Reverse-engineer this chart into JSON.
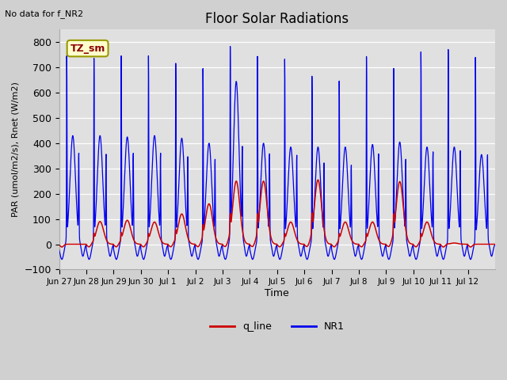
{
  "title": "Floor Solar Radiations",
  "xlabel": "Time",
  "ylabel": "PAR (umol/m2/s), Rnet (W/m2)",
  "ylim": [
    -100,
    850
  ],
  "yticks": [
    -100,
    0,
    100,
    200,
    300,
    400,
    500,
    600,
    700,
    800
  ],
  "no_data_text": "No data for f_NR2",
  "legend_labels": [
    "q_line",
    "NR1"
  ],
  "legend_colors": [
    "#cc0000",
    "#0000ee"
  ],
  "tz_label": "TZ_sm",
  "tz_bg": "#ffffcc",
  "tz_border": "#999900",
  "fig_bg": "#d0d0d0",
  "plot_bg": "#e0e0e0",
  "grid_color": "#ffffff",
  "xtick_labels": [
    "Jun 27",
    "Jun 28",
    "Jun 29",
    "Jun 30",
    "Jul 1",
    "Jul 2",
    "Jul 3",
    "Jul 4",
    "Jul 5",
    "Jul 6",
    "Jul 7",
    "Jul 8",
    "Jul 9",
    "Jul 10",
    "Jul 11",
    "Jul 12"
  ],
  "num_days": 16,
  "peak_NR1": [
    740,
    730,
    740,
    740,
    710,
    690,
    760,
    740,
    730,
    660,
    640,
    740,
    690,
    760,
    770,
    740
  ],
  "peak2_NR1": [
    430,
    430,
    425,
    430,
    420,
    400,
    645,
    400,
    385,
    385,
    385,
    395,
    405,
    385,
    385,
    355
  ],
  "peak_qline": [
    0,
    90,
    95,
    88,
    120,
    160,
    250,
    250,
    88,
    255,
    88,
    88,
    248,
    88,
    5,
    0
  ],
  "trough_NR1": -60,
  "trough_qline": -22
}
